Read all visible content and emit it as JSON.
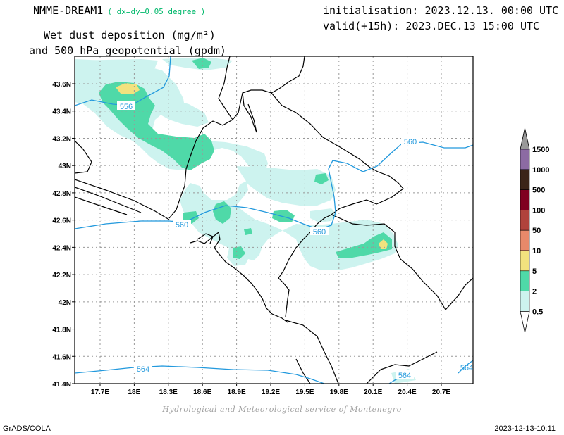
{
  "header": {
    "model": "NMME-DREAM1",
    "resolution": "( dx=dy=0.05 degree )",
    "field_line1": "Wet dust deposition (mg/m²)",
    "field_line2": "and 500 hPa geopotential (gpdm)",
    "initialisation": "initialisation: 2023.12.13. 00:00 UTC",
    "valid": "valid(+15h): 2023.DEC.13 15:00 UTC"
  },
  "map": {
    "lat_labels": [
      "43.6N",
      "43.4N",
      "43.2N",
      "43N",
      "42.8N",
      "42.6N",
      "42.4N",
      "42.2N",
      "42N",
      "41.8N",
      "41.6N",
      "41.4N"
    ],
    "lon_labels": [
      "17.7E",
      "18E",
      "18.3E",
      "18.6E",
      "18.9E",
      "19.2E",
      "19.5E",
      "19.8E",
      "20.1E",
      "20.4E",
      "20.7E"
    ],
    "contour_labels": [
      "556",
      "560",
      "560",
      "560",
      "564",
      "564",
      "564"
    ]
  },
  "legend": {
    "levels": [
      "1500",
      "1000",
      "500",
      "100",
      "50",
      "10",
      "5",
      "2",
      "0.5"
    ],
    "colors": [
      "#999999",
      "#8c6ba3",
      "#3b2418",
      "#800020",
      "#b0433c",
      "#e8896a",
      "#f2e27e",
      "#4fd9a8",
      "#cdf3ef"
    ]
  },
  "footer": {
    "credit": "Hydrological and Meteorological service of Montenegro",
    "software": "GrADS/COLA",
    "timestamp": "2023-12-13-10:11"
  }
}
